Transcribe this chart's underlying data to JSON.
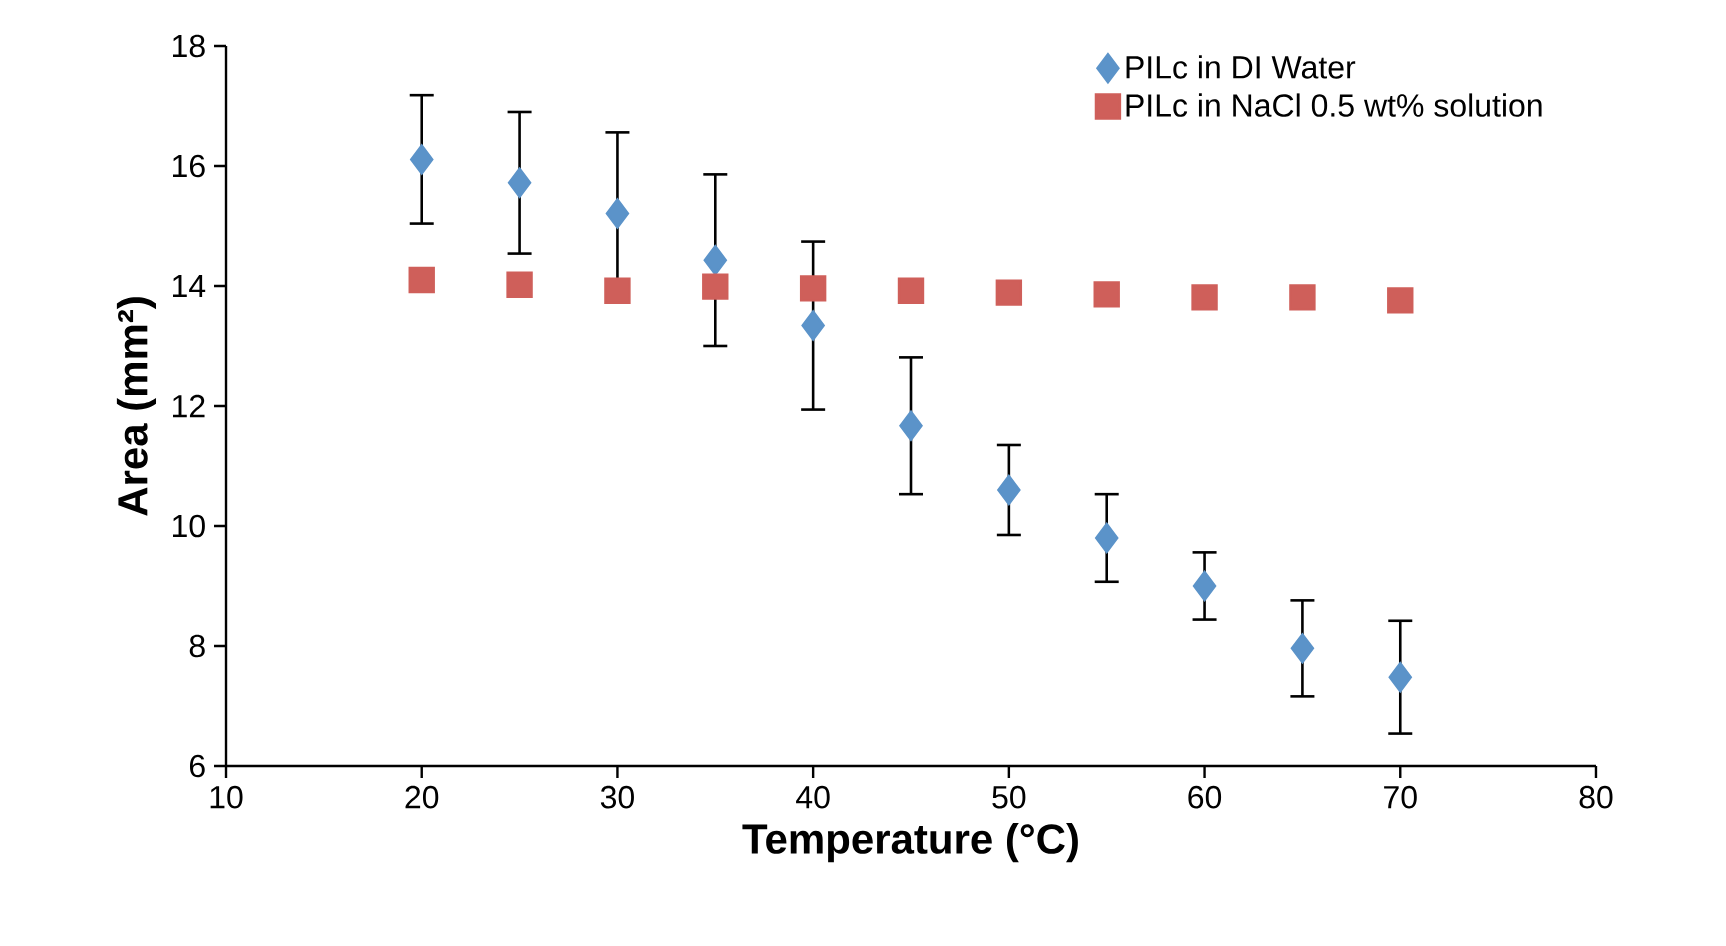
{
  "chart_data": {
    "type": "scatter",
    "xlabel": "Temperature (°C)",
    "ylabel": "Area (mm²)",
    "x": [
      20,
      25,
      30,
      35,
      40,
      45,
      50,
      55,
      60,
      65,
      70
    ],
    "series": [
      {
        "name": "PILc in DI Water",
        "color": "#5b93c9",
        "marker": "diamond",
        "values": [
          16.11,
          15.72,
          15.21,
          14.43,
          13.34,
          11.67,
          10.6,
          9.8,
          9.0,
          7.96,
          7.48
        ],
        "errors": [
          1.07,
          1.18,
          1.35,
          1.43,
          1.4,
          1.14,
          0.75,
          0.73,
          0.56,
          0.8,
          0.94
        ]
      },
      {
        "name": "PILc in NaCl 0.5 wt% solution",
        "color": "#cf5f5a",
        "marker": "square",
        "values": [
          14.1,
          14.02,
          13.92,
          13.99,
          13.96,
          13.92,
          13.89,
          13.86,
          13.81,
          13.81,
          13.76
        ]
      }
    ],
    "xlim": [
      10,
      80
    ],
    "ylim": [
      6,
      18
    ],
    "xticks": [
      10,
      20,
      30,
      40,
      50,
      60,
      70,
      80
    ],
    "yticks": [
      6,
      8,
      10,
      12,
      14,
      16,
      18
    ],
    "legend": "top right"
  }
}
